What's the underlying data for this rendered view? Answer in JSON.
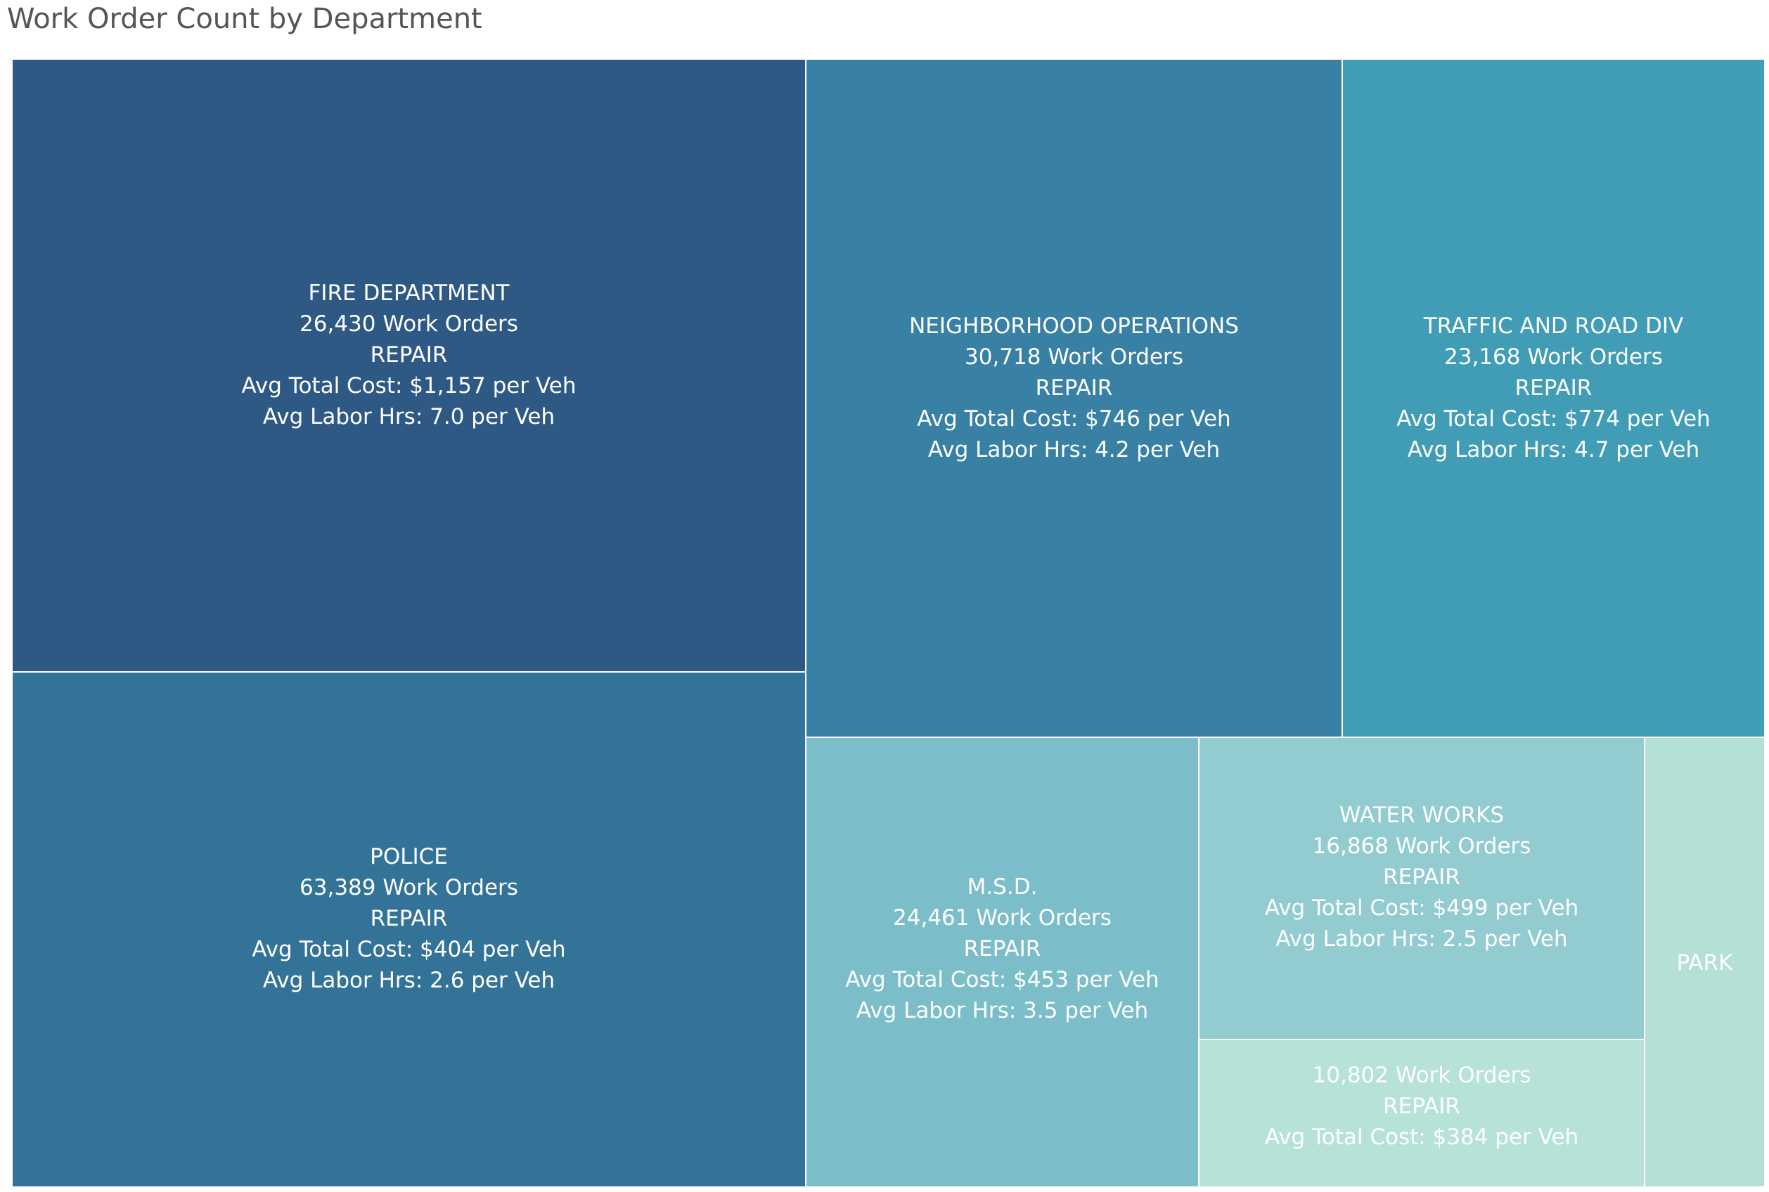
{
  "chart_data": {
    "type": "treemap",
    "title": "Work Order Count by Department",
    "size_metric": "Work Order Count",
    "color_metric": "Avg Total Cost per Veh",
    "items": [
      {
        "department": "FIRE DEPARTMENT",
        "work_orders_label": "26,430 Work Orders",
        "work_orders": 26430,
        "type_label": "REPAIR",
        "avg_total_cost_label": "Avg Total Cost: $1,157 per Veh",
        "avg_total_cost": 1157,
        "avg_labor_hrs_label": "Avg Labor Hrs: 7.0 per Veh",
        "avg_labor_hrs": 7.0,
        "color": "#2e5985"
      },
      {
        "department": "POLICE",
        "work_orders_label": "63,389 Work Orders",
        "work_orders": 63389,
        "type_label": "REPAIR",
        "avg_total_cost_label": "Avg Total Cost: $404 per Veh",
        "avg_total_cost": 404,
        "avg_labor_hrs_label": "Avg Labor Hrs: 2.6 per Veh",
        "avg_labor_hrs": 2.6,
        "color": "#337398"
      },
      {
        "department": "NEIGHBORHOOD OPERATIONS",
        "work_orders_label": "30,718 Work Orders",
        "work_orders": 30718,
        "type_label": "REPAIR",
        "avg_total_cost_label": "Avg Total Cost: $746 per Veh",
        "avg_total_cost": 746,
        "avg_labor_hrs_label": "Avg Labor Hrs: 4.2 per Veh",
        "avg_labor_hrs": 4.2,
        "color": "#3880a4"
      },
      {
        "department": "TRAFFIC AND ROAD DIV",
        "work_orders_label": "23,168 Work Orders",
        "work_orders": 23168,
        "type_label": "REPAIR",
        "avg_total_cost_label": "Avg Total Cost: $774 per Veh",
        "avg_total_cost": 774,
        "avg_labor_hrs_label": "Avg Labor Hrs: 4.7 per Veh",
        "avg_labor_hrs": 4.7,
        "color": "#419db5"
      },
      {
        "department": "M.S.D.",
        "work_orders_label": "24,461 Work Orders",
        "work_orders": 24461,
        "type_label": "REPAIR",
        "avg_total_cost_label": "Avg Total Cost: $453 per Veh",
        "avg_total_cost": 453,
        "avg_labor_hrs_label": "Avg Labor Hrs: 3.5 per Veh",
        "avg_labor_hrs": 3.5,
        "color": "#7bbec9"
      },
      {
        "department": "WATER WORKS",
        "work_orders_label": "16,868 Work Orders",
        "work_orders": 16868,
        "type_label": "REPAIR",
        "avg_total_cost_label": "Avg Total Cost: $499 per Veh",
        "avg_total_cost": 499,
        "avg_labor_hrs_label": "Avg Labor Hrs: 2.5 per Veh",
        "avg_labor_hrs": 2.5,
        "color": "#92cbd0"
      },
      {
        "department": "",
        "work_orders_label": "10,802 Work Orders",
        "work_orders": 10802,
        "type_label": "REPAIR",
        "avg_total_cost_label": "Avg Total Cost: $384 per Veh",
        "avg_total_cost": 384,
        "color": "#b7e2d8"
      },
      {
        "department": "PARK",
        "color": "#b5e0d6"
      }
    ]
  }
}
